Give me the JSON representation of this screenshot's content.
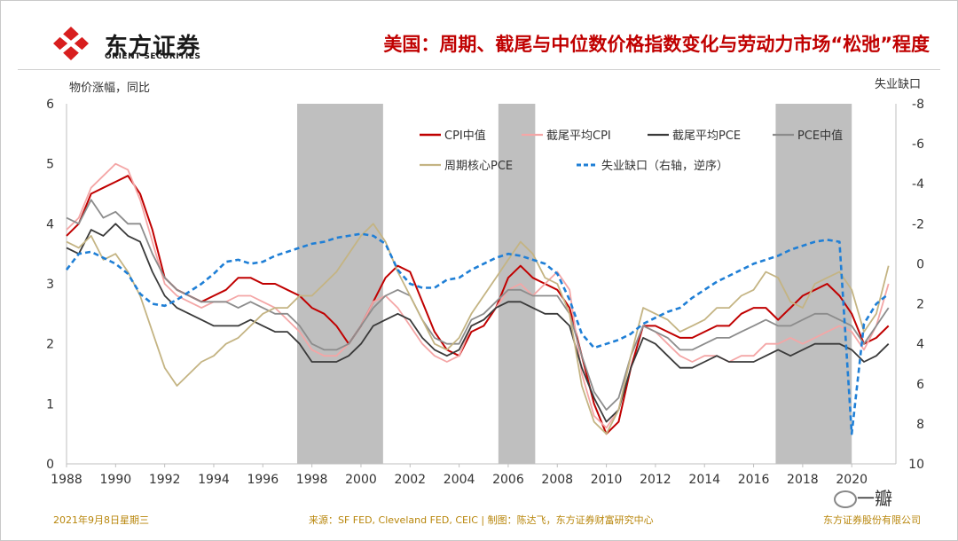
{
  "header": {
    "logo_name": "东方证券",
    "logo_sub": "ORIENT SECURITIES",
    "title": "美国：周期、截尾与中位数价格指数变化与劳动力市场“松弛”程度"
  },
  "axes_labels": {
    "left": "物价涨幅，同比",
    "right": "失业缺口"
  },
  "footer": {
    "date": "2021年9月8日星期三",
    "source": "来源：SF FED, Cleveland FED, CEIC | 制图：陈达飞，东方证券财富研究中心",
    "company": "东方证券股份有限公司",
    "watermark": "一瓣"
  },
  "colors": {
    "cpi_median": "#c00000",
    "trimmed_cpi": "#f4a6a6",
    "trimmed_pce": "#3a3a3a",
    "pce_median": "#8c8c8c",
    "cyclical_core_pce": "#c4b483",
    "unemployment_gap": "#1f7fd6",
    "recession": "#bfbfbf",
    "title": "#c00000"
  },
  "chart_data": {
    "type": "line",
    "title": "美国：周期、截尾与中位数价格指数变化与劳动力市场“松弛”程度",
    "ylabel": "物价涨幅，同比",
    "y2label": "失业缺口",
    "ylim": [
      0,
      6
    ],
    "y2lim": [
      -8,
      10
    ],
    "y2_inverted": true,
    "xlim": [
      1988,
      2021.8
    ],
    "x_ticks": [
      "1988",
      "1990",
      "1992",
      "1994",
      "1996",
      "1998",
      "2000",
      "2002",
      "2004",
      "2006",
      "2008",
      "2010",
      "2012",
      "2014",
      "2016",
      "2018",
      "2020"
    ],
    "y_ticks": [
      "0",
      "1",
      "2",
      "3",
      "4",
      "5",
      "6"
    ],
    "y2_ticks": [
      "-8",
      "-6",
      "-4",
      "-2",
      "0",
      "2",
      "4",
      "6",
      "8",
      "10"
    ],
    "recessions": [
      [
        1997.4,
        2000.9
      ],
      [
        2005.6,
        2007.1
      ],
      [
        2016.9,
        2020.0
      ]
    ],
    "x": [
      1988,
      1988.5,
      1989,
      1989.5,
      1990,
      1990.5,
      1991,
      1991.5,
      1992,
      1992.5,
      1993,
      1993.5,
      1994,
      1994.5,
      1995,
      1995.5,
      1996,
      1996.5,
      1997,
      1997.5,
      1998,
      1998.5,
      1999,
      1999.5,
      2000,
      2000.5,
      2001,
      2001.5,
      2002,
      2002.5,
      2003,
      2003.5,
      2004,
      2004.5,
      2005,
      2005.5,
      2006,
      2006.5,
      2007,
      2007.5,
      2008,
      2008.5,
      2009,
      2009.5,
      2010,
      2010.5,
      2011,
      2011.5,
      2012,
      2012.5,
      2013,
      2013.5,
      2014,
      2014.5,
      2015,
      2015.5,
      2016,
      2016.5,
      2017,
      2017.5,
      2018,
      2018.5,
      2019,
      2019.5,
      2020,
      2020.5,
      2021,
      2021.5
    ],
    "series": [
      {
        "name": "CPI中值",
        "axis": "left",
        "values": [
          3.8,
          4.0,
          4.5,
          4.6,
          4.7,
          4.8,
          4.5,
          3.9,
          3.1,
          2.9,
          2.8,
          2.7,
          2.8,
          2.9,
          3.1,
          3.1,
          3.0,
          3.0,
          2.9,
          2.8,
          2.6,
          2.5,
          2.3,
          2.0,
          2.3,
          2.7,
          3.1,
          3.3,
          3.2,
          2.7,
          2.2,
          1.9,
          1.8,
          2.2,
          2.3,
          2.6,
          3.1,
          3.3,
          3.1,
          3.0,
          2.9,
          2.6,
          1.8,
          1.0,
          0.5,
          0.7,
          1.6,
          2.3,
          2.3,
          2.2,
          2.1,
          2.1,
          2.2,
          2.3,
          2.3,
          2.5,
          2.6,
          2.6,
          2.4,
          2.6,
          2.8,
          2.9,
          3.0,
          2.8,
          2.5,
          2.0,
          2.1,
          2.3
        ]
      },
      {
        "name": "截尾平均CPI",
        "axis": "left",
        "values": [
          3.9,
          4.1,
          4.6,
          4.8,
          5.0,
          4.9,
          4.4,
          3.7,
          3.0,
          2.8,
          2.7,
          2.6,
          2.7,
          2.7,
          2.8,
          2.8,
          2.7,
          2.6,
          2.4,
          2.2,
          1.9,
          1.8,
          1.8,
          2.0,
          2.3,
          2.7,
          2.8,
          2.6,
          2.3,
          2.0,
          1.8,
          1.7,
          1.8,
          2.3,
          2.4,
          2.6,
          2.9,
          3.0,
          2.8,
          3.0,
          3.2,
          2.9,
          1.5,
          0.8,
          0.6,
          0.9,
          1.8,
          2.3,
          2.2,
          2.0,
          1.8,
          1.7,
          1.8,
          1.8,
          1.7,
          1.8,
          1.8,
          2.0,
          2.0,
          2.1,
          2.0,
          2.1,
          2.2,
          2.3,
          2.2,
          1.9,
          2.3,
          3.0
        ]
      },
      {
        "name": "截尾平均PCE",
        "axis": "left",
        "values": [
          3.6,
          3.5,
          3.9,
          3.8,
          4.0,
          3.8,
          3.7,
          3.2,
          2.8,
          2.6,
          2.5,
          2.4,
          2.3,
          2.3,
          2.3,
          2.4,
          2.3,
          2.2,
          2.2,
          2.0,
          1.7,
          1.7,
          1.7,
          1.8,
          2.0,
          2.3,
          2.4,
          2.5,
          2.4,
          2.1,
          1.9,
          1.8,
          1.9,
          2.3,
          2.4,
          2.6,
          2.7,
          2.7,
          2.6,
          2.5,
          2.5,
          2.3,
          1.6,
          1.1,
          0.7,
          0.9,
          1.6,
          2.1,
          2.0,
          1.8,
          1.6,
          1.6,
          1.7,
          1.8,
          1.7,
          1.7,
          1.7,
          1.8,
          1.9,
          1.8,
          1.9,
          2.0,
          2.0,
          2.0,
          1.9,
          1.7,
          1.8,
          2.0
        ]
      },
      {
        "name": "PCE中值",
        "axis": "left",
        "values": [
          4.1,
          4.0,
          4.4,
          4.1,
          4.2,
          4.0,
          4.0,
          3.5,
          3.1,
          2.9,
          2.8,
          2.7,
          2.7,
          2.7,
          2.6,
          2.7,
          2.6,
          2.5,
          2.5,
          2.3,
          2.0,
          1.9,
          1.9,
          2.0,
          2.3,
          2.6,
          2.8,
          2.9,
          2.8,
          2.4,
          2.1,
          2.0,
          2.0,
          2.4,
          2.5,
          2.7,
          2.9,
          2.9,
          2.8,
          2.8,
          2.8,
          2.5,
          1.8,
          1.2,
          0.9,
          1.1,
          1.8,
          2.3,
          2.2,
          2.1,
          1.9,
          1.9,
          2.0,
          2.1,
          2.1,
          2.2,
          2.3,
          2.4,
          2.3,
          2.3,
          2.4,
          2.5,
          2.5,
          2.4,
          2.3,
          2.0,
          2.3,
          2.6
        ]
      },
      {
        "name": "周期核心PCE",
        "axis": "left",
        "values": [
          3.7,
          3.6,
          3.8,
          3.4,
          3.5,
          3.2,
          2.8,
          2.2,
          1.6,
          1.3,
          1.5,
          1.7,
          1.8,
          2.0,
          2.1,
          2.3,
          2.5,
          2.6,
          2.6,
          2.8,
          2.8,
          3.0,
          3.2,
          3.5,
          3.8,
          4.0,
          3.7,
          3.2,
          2.8,
          2.4,
          2.0,
          1.9,
          2.1,
          2.5,
          2.8,
          3.1,
          3.4,
          3.7,
          3.5,
          3.1,
          3.0,
          2.5,
          1.3,
          0.7,
          0.5,
          0.9,
          1.8,
          2.6,
          2.5,
          2.4,
          2.2,
          2.3,
          2.4,
          2.6,
          2.6,
          2.8,
          2.9,
          3.2,
          3.1,
          2.7,
          2.6,
          3.0,
          3.1,
          3.2,
          2.9,
          2.2,
          2.5,
          3.3
        ]
      },
      {
        "name": "失业缺口（右轴，逆序）",
        "axis": "right",
        "values": [
          0.3,
          -0.5,
          -0.6,
          -0.3,
          0.0,
          0.5,
          1.5,
          2.0,
          2.1,
          1.8,
          1.4,
          1.0,
          0.5,
          -0.1,
          -0.2,
          0.0,
          -0.1,
          -0.4,
          -0.6,
          -0.8,
          -1.0,
          -1.1,
          -1.3,
          -1.4,
          -1.5,
          -1.4,
          -1.0,
          0.3,
          1.0,
          1.2,
          1.2,
          0.8,
          0.7,
          0.3,
          0.0,
          -0.3,
          -0.5,
          -0.4,
          -0.2,
          0.0,
          0.5,
          1.8,
          3.5,
          4.2,
          4.0,
          3.8,
          3.5,
          3.0,
          2.7,
          2.4,
          2.2,
          1.7,
          1.3,
          0.9,
          0.6,
          0.3,
          0.0,
          -0.2,
          -0.4,
          -0.7,
          -0.9,
          -1.1,
          -1.2,
          -1.1,
          8.5,
          3.0,
          2.0,
          1.5
        ]
      }
    ]
  }
}
